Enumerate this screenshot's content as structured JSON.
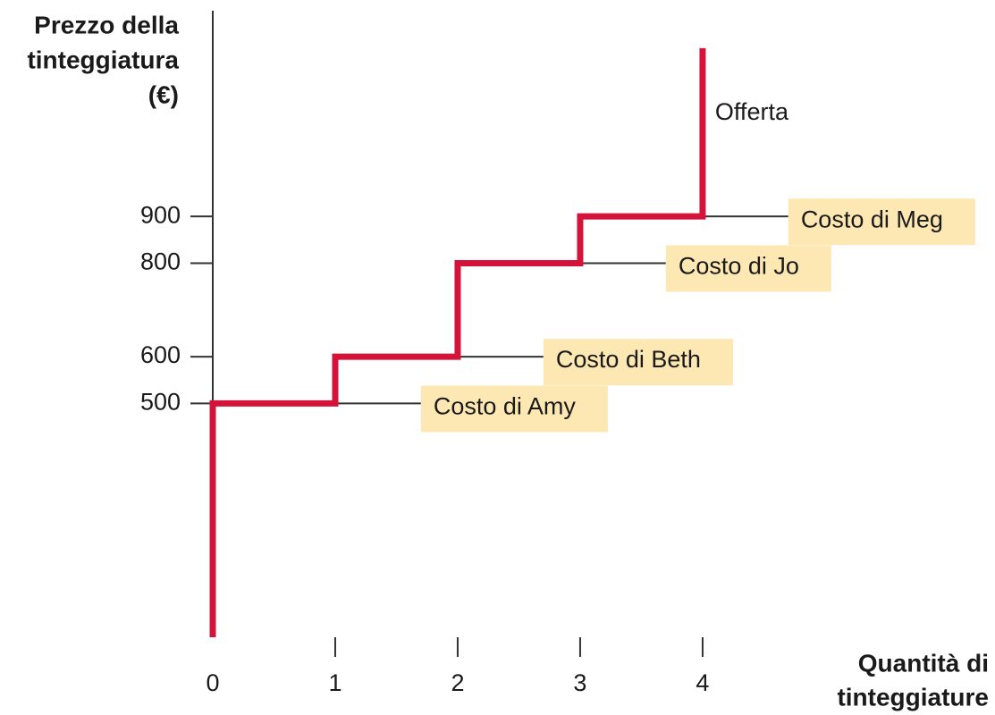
{
  "chart_data": {
    "type": "line",
    "ylabel": [
      "Prezzo della",
      "tinteggiatura",
      "(€)"
    ],
    "xlabel": [
      "Quantità di",
      "tinteggiature"
    ],
    "xlim": [
      0,
      6.3
    ],
    "ylim": [
      0,
      1340
    ],
    "xticks": [
      0,
      1,
      2,
      3,
      4
    ],
    "yticks": [
      500,
      600,
      800,
      900
    ],
    "series": [
      {
        "name": "Offerta",
        "color": "#d5133a",
        "x": [
          0,
          0,
          1,
          1,
          2,
          2,
          3,
          3,
          4,
          4
        ],
        "values": [
          0,
          500,
          500,
          600,
          600,
          800,
          800,
          900,
          900,
          1260
        ]
      }
    ],
    "annotations": [
      {
        "text": "Costo di Amy",
        "x": 1,
        "value": 500
      },
      {
        "text": "Costo di Beth",
        "x": 2,
        "value": 600
      },
      {
        "text": "Costo di Jo",
        "x": 3,
        "value": 800
      },
      {
        "text": "Costo di Meg",
        "x": 4,
        "value": 900
      }
    ]
  }
}
